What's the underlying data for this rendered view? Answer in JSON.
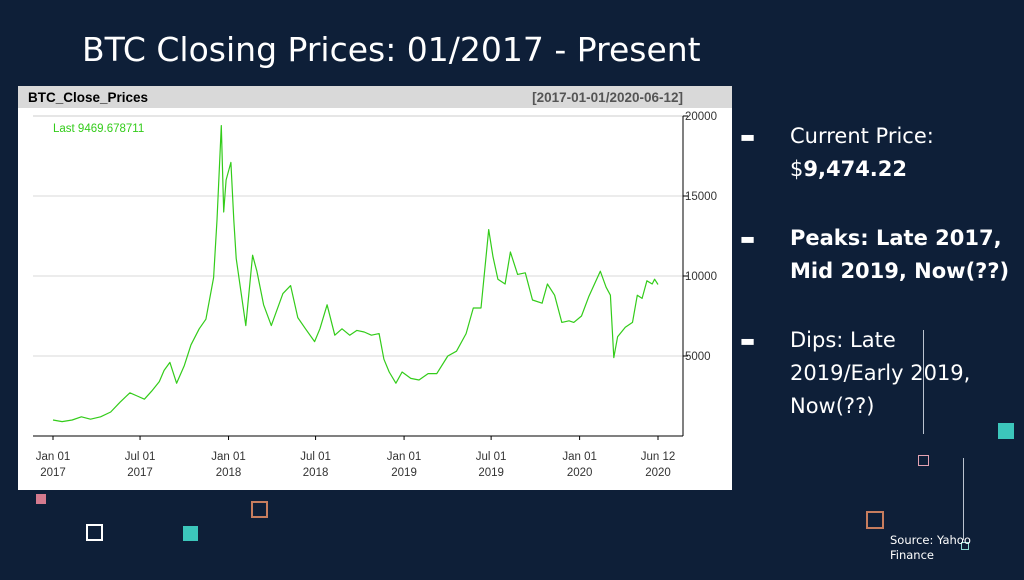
{
  "slide": {
    "title": "BTC Closing Prices: 01/2017 - Present",
    "source": "Source: Yahoo Finance"
  },
  "bullets": [
    {
      "line1": "Current Price:",
      "line2": "$9,474.22",
      "bold_part": "9,474.22"
    },
    {
      "line1": "Peaks: Late 2017,",
      "line2": "Mid 2019, Now(??)",
      "bold": true
    },
    {
      "line1": "Dips: Late",
      "line2": "2019/Early 2019,",
      "line3": "Now(??)"
    }
  ],
  "colors": {
    "background": "#0e1f38",
    "series": "#33cc1a",
    "accent_teal": "#3cc6bb",
    "accent_pink": "#d47a8e",
    "accent_copper": "#c77d5e"
  },
  "chart_data": {
    "type": "line",
    "title": "BTC_Close_Prices",
    "date_range_label": "[2017-01-01/2020-06-12]",
    "last_label": "Last 9469.678711",
    "ylim": [
      0,
      20000
    ],
    "xlim": [
      "2017-01-01",
      "2020-06-12"
    ],
    "yticks": [
      5000,
      10000,
      15000,
      20000
    ],
    "ytick_labels": [
      "5000",
      "10000",
      "15000",
      "20000"
    ],
    "grid": true,
    "xticks": [
      {
        "date": "2017-01-01",
        "line1": "Jan 01",
        "line2": "2017"
      },
      {
        "date": "2017-07-01",
        "line1": "Jul 01",
        "line2": "2017"
      },
      {
        "date": "2018-01-01",
        "line1": "Jan 01",
        "line2": "2018"
      },
      {
        "date": "2018-07-01",
        "line1": "Jul 01",
        "line2": "2018"
      },
      {
        "date": "2019-01-01",
        "line1": "Jan 01",
        "line2": "2019"
      },
      {
        "date": "2019-07-01",
        "line1": "Jul 01",
        "line2": "2019"
      },
      {
        "date": "2020-01-01",
        "line1": "Jan 01",
        "line2": "2020"
      },
      {
        "date": "2020-06-12",
        "line1": "Jun 12",
        "line2": "2020"
      }
    ],
    "series": [
      {
        "x": [
          "2017-01-01",
          "2017-01-20",
          "2017-02-10",
          "2017-03-01",
          "2017-03-20",
          "2017-04-10",
          "2017-05-01",
          "2017-05-20",
          "2017-06-10",
          "2017-06-25",
          "2017-07-10",
          "2017-07-25",
          "2017-08-10",
          "2017-08-20",
          "2017-09-01",
          "2017-09-15",
          "2017-10-01",
          "2017-10-15",
          "2017-11-01",
          "2017-11-15",
          "2017-12-01",
          "2017-12-08",
          "2017-12-17",
          "2017-12-22",
          "2017-12-27",
          "2018-01-06",
          "2018-01-12",
          "2018-01-17",
          "2018-02-06",
          "2018-02-20",
          "2018-03-01",
          "2018-03-15",
          "2018-03-31",
          "2018-04-24",
          "2018-05-10",
          "2018-05-25",
          "2018-06-10",
          "2018-06-29",
          "2018-07-10",
          "2018-07-25",
          "2018-08-10",
          "2018-08-25",
          "2018-09-10",
          "2018-09-25",
          "2018-10-10",
          "2018-10-25",
          "2018-11-10",
          "2018-11-20",
          "2018-12-01",
          "2018-12-15",
          "2018-12-28",
          "2019-01-15",
          "2019-02-01",
          "2019-02-20",
          "2019-03-10",
          "2019-04-02",
          "2019-04-20",
          "2019-05-10",
          "2019-05-25",
          "2019-06-10",
          "2019-06-26",
          "2019-07-05",
          "2019-07-15",
          "2019-07-30",
          "2019-08-10",
          "2019-08-25",
          "2019-09-10",
          "2019-09-25",
          "2019-10-15",
          "2019-10-26",
          "2019-11-10",
          "2019-11-25",
          "2019-12-10",
          "2019-12-20",
          "2020-01-05",
          "2020-01-20",
          "2020-02-13",
          "2020-02-25",
          "2020-03-05",
          "2020-03-12",
          "2020-03-20",
          "2020-04-05",
          "2020-04-20",
          "2020-04-30",
          "2020-05-10",
          "2020-05-20",
          "2020-05-31",
          "2020-06-05",
          "2020-06-12"
        ],
        "y": [
          1000,
          900,
          1000,
          1200,
          1050,
          1200,
          1500,
          2100,
          2700,
          2500,
          2300,
          2800,
          3400,
          4100,
          4600,
          3300,
          4400,
          5700,
          6700,
          7300,
          9900,
          13500,
          19400,
          14000,
          16000,
          17100,
          13500,
          11100,
          6900,
          11300,
          10300,
          8200,
          6900,
          8900,
          9400,
          7400,
          6700,
          5900,
          6700,
          8200,
          6300,
          6700,
          6300,
          6600,
          6500,
          6300,
          6400,
          4800,
          4000,
          3300,
          4000,
          3600,
          3500,
          3900,
          3900,
          5000,
          5300,
          6400,
          8000,
          8000,
          12900,
          11200,
          9800,
          9500,
          11500,
          10100,
          10200,
          8500,
          8300,
          9500,
          8800,
          7100,
          7200,
          7100,
          7500,
          8700,
          10300,
          9300,
          8800,
          4900,
          6200,
          6800,
          7100,
          8800,
          8600,
          9700,
          9500,
          9800,
          9470
        ]
      }
    ]
  }
}
